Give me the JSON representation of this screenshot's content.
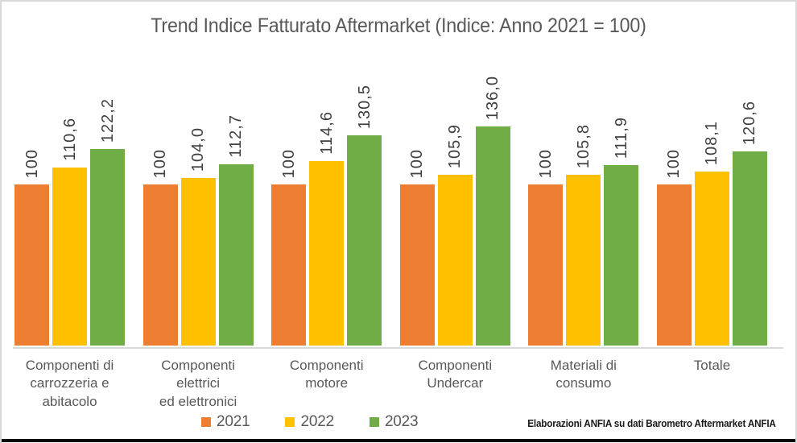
{
  "title": "Trend Indice Fatturato Aftermarket (Indice: Anno 2021 = 100)",
  "source_note": "Elaborazioni ANFIA su dati Barometro Aftermarket ANFIA",
  "colors": {
    "series_2021": "#ED7D31",
    "series_2022": "#FFC000",
    "series_2023": "#70AD47",
    "axis_line": "#D9D9D9",
    "text_gray": "#595959",
    "value_text": "#404040"
  },
  "legend": [
    {
      "label": "2021",
      "color": "#ED7D31"
    },
    {
      "label": "2022",
      "color": "#FFC000"
    },
    {
      "label": "2023",
      "color": "#70AD47"
    }
  ],
  "chart_data": {
    "type": "bar",
    "title": "Trend Indice Fatturato Aftermarket (Indice: Anno 2021 = 100)",
    "xlabel": "",
    "ylabel": "",
    "ylim": [
      0,
      170
    ],
    "grid": false,
    "legend_position": "bottom",
    "value_labels_rotated": true,
    "categories": [
      "Componenti di\ncarrozzeria e\nabitacolo",
      "Componenti\nelettrici\ned elettronici",
      "Componenti\nmotore",
      "Componenti\nUndercar",
      "Materiali di\nconsumo",
      "Totale"
    ],
    "series": [
      {
        "name": "2021",
        "color": "#ED7D31",
        "values": [
          100,
          100,
          100,
          100,
          100,
          100
        ],
        "labels": [
          "100",
          "100",
          "100",
          "100",
          "100",
          "100"
        ]
      },
      {
        "name": "2022",
        "color": "#FFC000",
        "values": [
          110.6,
          104.0,
          114.6,
          105.9,
          105.8,
          108.1
        ],
        "labels": [
          "110,6",
          "104,0",
          "114,6",
          "105,9",
          "105,8",
          "108,1"
        ]
      },
      {
        "name": "2023",
        "color": "#70AD47",
        "values": [
          122.2,
          112.7,
          130.5,
          136.0,
          111.9,
          120.6
        ],
        "labels": [
          "122,2",
          "112,7",
          "130,5",
          "136,0",
          "111,9",
          "120,6"
        ]
      }
    ]
  }
}
